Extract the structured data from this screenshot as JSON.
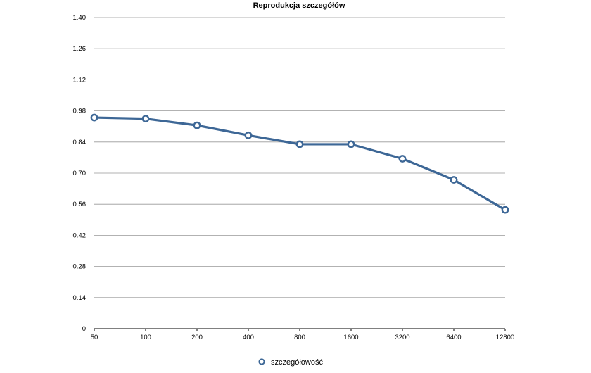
{
  "chart_data": {
    "type": "line",
    "title": "Reprodukcja szczegółów",
    "xlabel": "",
    "ylabel": "",
    "categories": [
      "50",
      "100",
      "200",
      "400",
      "800",
      "1600",
      "3200",
      "6400",
      "12800"
    ],
    "series": [
      {
        "name": "szczegółowość",
        "color": "#3d6796",
        "values": [
          0.95,
          0.945,
          0.915,
          0.87,
          0.83,
          0.83,
          0.765,
          0.67,
          0.535
        ]
      }
    ],
    "ylim": [
      0,
      1.4
    ],
    "yticks": [
      "0",
      "0.14",
      "0.28",
      "0.42",
      "0.56",
      "0.70",
      "0.84",
      "0.98",
      "1.12",
      "1.26",
      "1.40"
    ],
    "grid": true,
    "legend_position": "bottom"
  }
}
